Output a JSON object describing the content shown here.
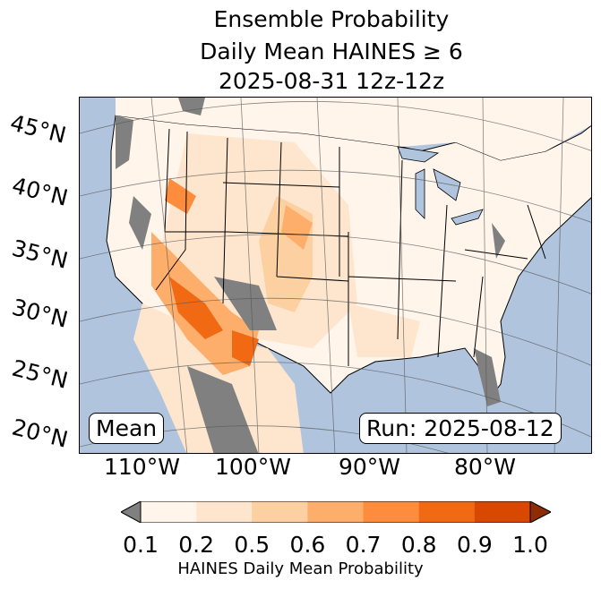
{
  "title": {
    "line1": "Ensemble Probability",
    "line2": "Daily Mean HAINES ≥ 6",
    "line3": "2025-08-31 12z-12z"
  },
  "map": {
    "lat_labels": [
      "45°N",
      "40°N",
      "35°N",
      "30°N",
      "25°N",
      "20°N"
    ],
    "lon_labels": [
      "110°W",
      "100°W",
      "90°W",
      "80°W"
    ],
    "mean_label": "Mean",
    "run_label": "Run: 2025-08-12",
    "colors": {
      "ocean": "#b0c4de",
      "nodata": "#808080",
      "border": "#000000"
    }
  },
  "colorbar": {
    "ticks": [
      "0.1",
      "0.2",
      "0.5",
      "0.6",
      "0.7",
      "0.8",
      "0.9",
      "1.0"
    ],
    "colors": [
      "#fff5eb",
      "#fee6ce",
      "#fdd0a2",
      "#fdae6b",
      "#fd8d3c",
      "#f16913",
      "#d94801"
    ],
    "under_color": "#808080",
    "over_color": "#8c2d04",
    "label": "HAINES Daily Mean Probability"
  }
}
